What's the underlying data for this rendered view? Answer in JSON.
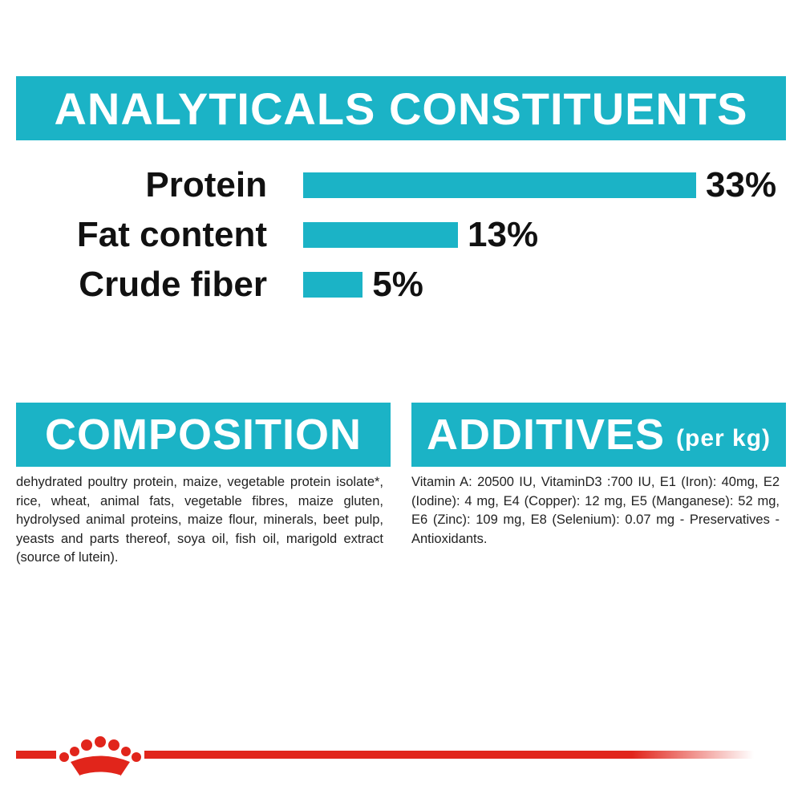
{
  "chart_data": {
    "type": "bar",
    "orientation": "horizontal",
    "title": "ANALYTICALS CONSTITUENTS",
    "categories": [
      "Protein",
      "Fat content",
      "Crude fiber"
    ],
    "values": [
      33,
      13,
      5
    ],
    "value_labels": [
      "33%",
      "13%",
      "5%"
    ],
    "color": "#1bb3c6"
  },
  "composition": {
    "title": "COMPOSITION",
    "text": "dehydrated poultry protein, maize, vegetable protein isolate*, rice, wheat, animal fats, vegetable fibres, maize gluten, hydrolysed animal proteins, maize flour, minerals, beet pulp, yeasts and parts thereof, soya oil, fish oil, marigold extract (source of lutein)."
  },
  "additives": {
    "title": "ADDITIVES",
    "unit": "(per kg)",
    "text": "Vitamin A: 20500 IU, VitaminD3 :700 IU, E1 (Iron): 40mg, E2 (Iodine): 4 mg, E4 (Copper): 12 mg, E5 (Manganese): 52 mg, E6 (Zinc): 109 mg, E8 (Selenium): 0.07 mg - Preservatives - Antioxidants."
  }
}
